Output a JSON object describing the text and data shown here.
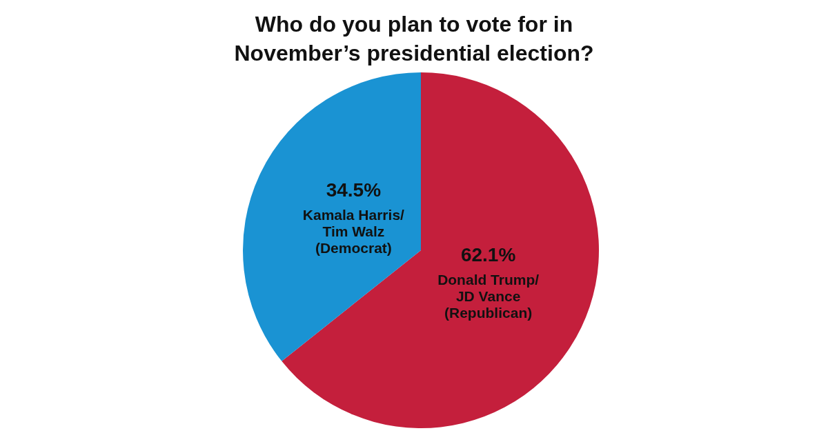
{
  "chart_data": {
    "type": "pie",
    "title": "Who do you plan to vote for in November’s presidential election?",
    "categories": [
      "Donald Trump/ JD Vance (Republican)",
      "Kamala Harris/ Tim Walz (Democrat)"
    ],
    "values": [
      62.1,
      34.5
    ],
    "colors": [
      "#c41f3c",
      "#1a93d3"
    ],
    "value_labels": [
      "62.1%",
      "34.5%"
    ]
  }
}
